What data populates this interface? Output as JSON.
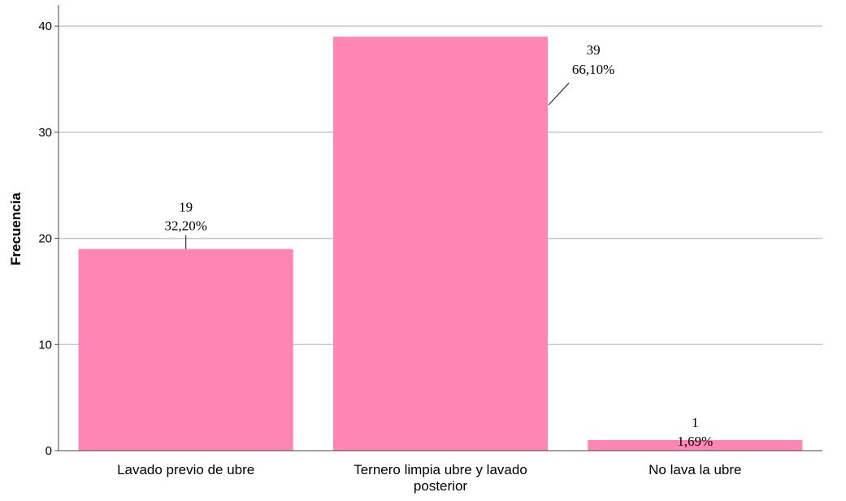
{
  "chart_data": {
    "type": "bar",
    "title": "",
    "xlabel": "",
    "ylabel": "Frecuencia",
    "ylim": [
      0,
      42
    ],
    "yticks": [
      0,
      10,
      20,
      30,
      40
    ],
    "grid": true,
    "bar_color": "#ff85b4",
    "categories": [
      [
        "Lavado previo de ubre"
      ],
      [
        "Ternero limpia ubre y lavado",
        "posterior"
      ],
      [
        "No lava la ubre"
      ]
    ],
    "values": [
      19,
      39,
      1
    ],
    "value_labels": [
      "19",
      "39",
      "1"
    ],
    "percent_labels": [
      "32,20%",
      "66,10%",
      "1,69%"
    ]
  }
}
